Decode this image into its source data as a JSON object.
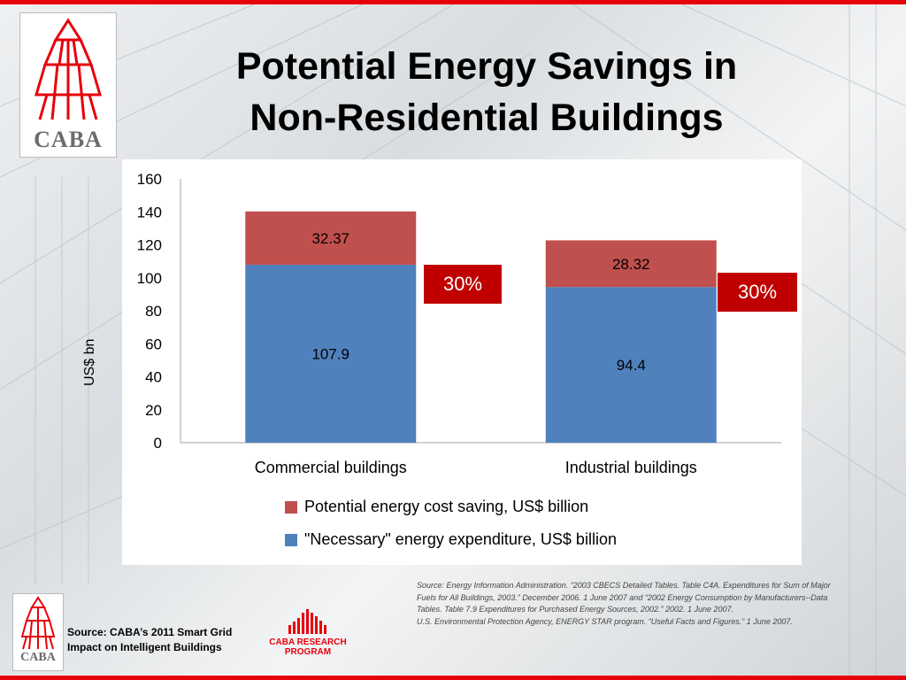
{
  "slide": {
    "title_line1": "Potential Energy Savings in",
    "title_line2": "Non-Residential Buildings"
  },
  "brand": {
    "logo_text": "CABA",
    "program_line1": "CABA RESEARCH",
    "program_line2": "PROGRAM",
    "accent": "#e8000b"
  },
  "badges": [
    {
      "text": "30%"
    },
    {
      "text": "30%"
    }
  ],
  "footer": {
    "source_line1": "Source: CABA’s 2011 Smart Grid",
    "source_line2": "Impact on Intelligent Buildings",
    "citation1": "Source: Energy Information Administration. “2003 CBECS Detailed Tables. Table C4A. Expenditures for Sum of Major Fuels for All Buildings, 2003.” December 2006. 1 June 2007 and “2002 Energy Consumption by Manufacturers--Data Tables. Table 7.9 Expenditures for Purchased Energy Sources, 2002.” 2002. 1 June 2007.",
    "citation2": "U.S. Environmental Protection Agency, ENERGY STAR program. “Useful Facts and Figures.” 1 June 2007."
  },
  "chart_data": {
    "type": "bar",
    "stacked": true,
    "categories": [
      "Commercial buildings",
      "Industrial buildings"
    ],
    "series": [
      {
        "name": "\"Necessary\" energy expenditure, US$ billion",
        "values": [
          107.9,
          94.4
        ],
        "color": "#4f81bd",
        "labels": [
          "107.9",
          "94.4"
        ]
      },
      {
        "name": "Potential energy cost saving, US$ billion",
        "values": [
          32.37,
          28.32
        ],
        "color": "#c0504d",
        "labels": [
          "32.37",
          "28.32"
        ]
      }
    ],
    "xlabel": "",
    "ylabel": "US$ bn",
    "ylim": [
      0,
      160
    ],
    "yticks": [
      "0",
      "20",
      "40",
      "60",
      "80",
      "100",
      "120",
      "140",
      "160"
    ],
    "legend_position": "bottom",
    "legend": [
      {
        "name": "Potential energy cost saving, US$ billion",
        "color": "#c0504d"
      },
      {
        "name": "\"Necessary\" energy expenditure, US$ billion",
        "color": "#4f81bd"
      }
    ],
    "grid": false
  }
}
